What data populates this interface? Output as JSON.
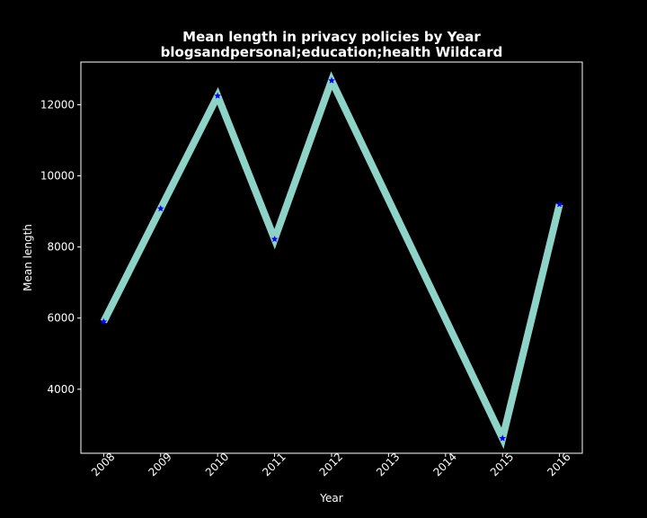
{
  "chart_data": {
    "type": "line",
    "title": "Mean length in privacy policies by Year",
    "subtitle": "blogsandpersonal;education;health Wildcard",
    "xlabel": "Year",
    "ylabel": "Mean length",
    "x": [
      2008,
      2009,
      2010,
      2011,
      2012,
      2015,
      2016
    ],
    "xticks": [
      "2008",
      "2009",
      "2010",
      "2011",
      "2012",
      "2013",
      "2014",
      "2015",
      "2016"
    ],
    "yticks": [
      4000,
      6000,
      8000,
      10000,
      12000
    ],
    "ytick_labels": [
      "4000",
      "6000",
      "8000",
      "10000",
      "12000"
    ],
    "xlim": [
      2007.6,
      2016.4
    ],
    "ylim": [
      2200,
      13200
    ],
    "series": [
      {
        "name": "Mean length",
        "values": [
          5900,
          9080,
          12250,
          8220,
          12680,
          2620,
          9200
        ]
      }
    ],
    "line_color": "#8dd3c7",
    "marker_color": "#0000ff",
    "background": "#000000",
    "foreground": "#ffffff"
  }
}
